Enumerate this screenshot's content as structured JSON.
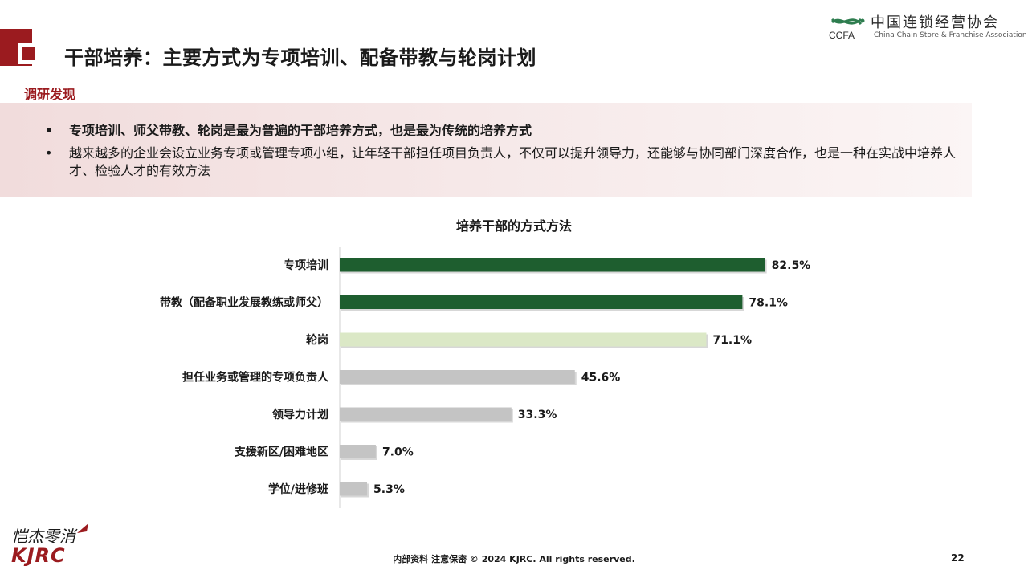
{
  "header": {
    "title": "干部培养：主要方式为专项培训、配备带教与轮岗计划",
    "logo_cn": "中国连锁经营协会",
    "logo_abbr": "CCFA",
    "logo_en": "China Chain Store & Franchise Association",
    "accent_color": "#9b1b1f"
  },
  "findings": {
    "label": "调研发现",
    "bullet_symbol": "•",
    "items": [
      "专项培训、师父带教、轮岗是最为普遍的干部培养方式，也是最为传统的培养方式",
      "越来越多的企业会设立业务专项或管理专项小组，让年轻干部担任项目负责人，不仅可以提升领导力，还能够与协同部门深度合作，也是一种在实战中培养人才、检验人才的有效方法"
    ]
  },
  "chart_data": {
    "type": "bar",
    "orientation": "horizontal",
    "title": "培养干部的方式方法",
    "categories": [
      "专项培训",
      "带教（配备职业发展教练或师父）",
      "轮岗",
      "担任业务或管理的专项负责人",
      "领导力计划",
      "支援新区/困难地区",
      "学位/进修班"
    ],
    "values": [
      82.5,
      78.1,
      71.1,
      45.6,
      33.3,
      7.0,
      5.3
    ],
    "value_labels": [
      "82.5%",
      "78.1%",
      "71.1%",
      "45.6%",
      "33.3%",
      "7.0%",
      "5.3%"
    ],
    "bar_colors": [
      "#1e5e2f",
      "#1e5e2f",
      "#dbe8c6",
      "#c4c4c4",
      "#c4c4c4",
      "#c4c4c4",
      "#c4c4c4"
    ],
    "xlim": [
      0,
      100
    ],
    "grid": false,
    "legend": "none"
  },
  "footer": {
    "brand_script": "恺杰零消",
    "brand_mark": "KJRC",
    "notice": "内部资料 注意保密 © 2024 KJRC. All rights reserved.",
    "page_number": "22"
  }
}
